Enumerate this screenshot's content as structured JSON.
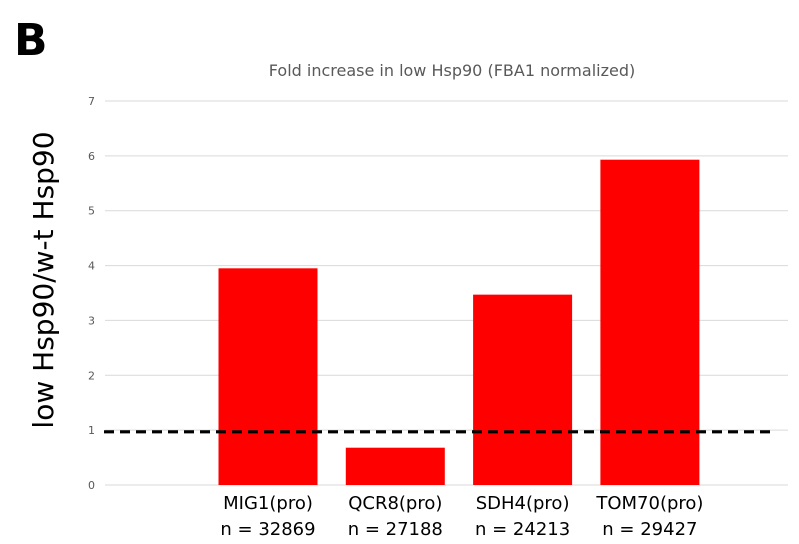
{
  "panel_label": "B",
  "chart_data": {
    "type": "bar",
    "title": "Fold increase in low Hsp90 (FBA1 normalized)",
    "xlabel": "",
    "ylabel": "low Hsp90/w-t Hsp90",
    "ylim": [
      0,
      7
    ],
    "yticks": [
      "0",
      "1",
      "2",
      "3",
      "4",
      "5",
      "6",
      "7"
    ],
    "grid": true,
    "categories": [
      "MIG1(pro)",
      "QCR8(pro)",
      "SDH4(pro)",
      "TOM70(pro)"
    ],
    "category_counts": [
      "n = 32869",
      "n = 27188",
      "n = 24213",
      "n = 29427"
    ],
    "values": [
      3.95,
      0.68,
      3.47,
      5.93
    ],
    "bar_color": "#ff0000",
    "reference_line": {
      "value": 0.97,
      "style": "dashed",
      "color": "#000000"
    }
  }
}
